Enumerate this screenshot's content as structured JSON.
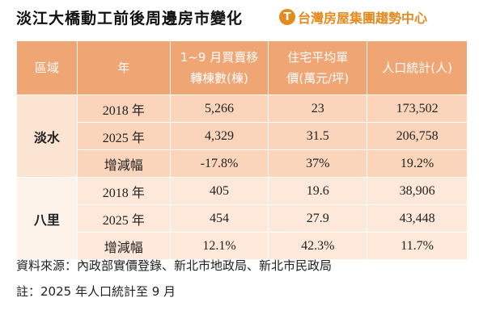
{
  "title": "淡江大橋動工前後周邊房市變化",
  "logo": {
    "icon": "logo-mark",
    "text": "台灣房屋集團趨勢中心"
  },
  "table": {
    "headers": {
      "region": "區域",
      "year": "年",
      "sales_line1": "1~9 月買賣移",
      "sales_line2": "轉棟數(棟)",
      "price_line1": "住宅平均單",
      "price_line2": "價(萬元/坪)",
      "population": "人口統計(人)"
    },
    "groups": [
      {
        "region": "淡水",
        "rows": [
          {
            "year": "2018 年",
            "sales": "5,266",
            "price": "23",
            "population": "173,502"
          },
          {
            "year": "2025 年",
            "sales": "4,329",
            "price": "31.5",
            "population": "206,758"
          },
          {
            "year": "增減幅",
            "sales": "-17.8%",
            "price": "37%",
            "population": "19.2%"
          }
        ]
      },
      {
        "region": "八里",
        "rows": [
          {
            "year": "2018 年",
            "sales": "405",
            "price": "19.6",
            "population": "38,906"
          },
          {
            "year": "2025 年",
            "sales": "454",
            "price": "27.9",
            "population": "43,448"
          },
          {
            "year": "增減幅",
            "sales": "12.1%",
            "price": "42.3%",
            "population": "11.7%"
          }
        ]
      }
    ]
  },
  "footer": {
    "source": "資料來源：內政部實價登錄、新北市地政局、新北市民政局",
    "note": "註：2025 年人口統計至 9 月"
  },
  "colors": {
    "header_bg": "#f0a575",
    "group1_bg": "#fad5bb",
    "group2_bg": "#fde8d9",
    "logo": "#e58a1f"
  }
}
